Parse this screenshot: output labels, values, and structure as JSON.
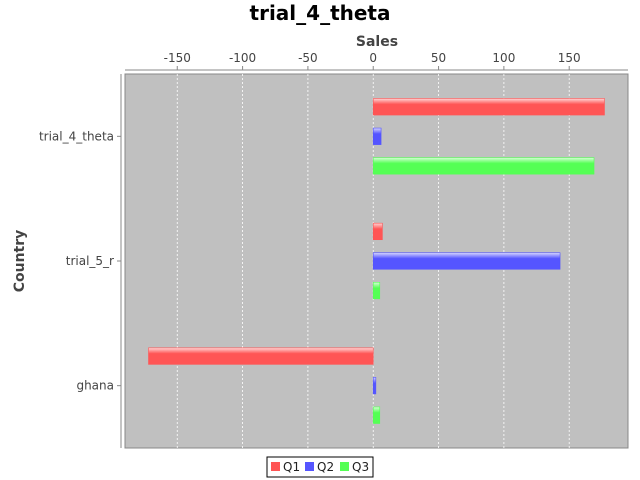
{
  "chart_data": {
    "type": "bar",
    "orientation": "horizontal",
    "title": "trial_4_theta",
    "xlabel": "Sales",
    "ylabel": "Country",
    "categories": [
      "trial_4_theta",
      "trial_5_r",
      "ghana"
    ],
    "series": [
      {
        "name": "Q1",
        "color": "#ff5555",
        "values": [
          177,
          7,
          -172
        ]
      },
      {
        "name": "Q2",
        "color": "#5555ff",
        "values": [
          6,
          143,
          2
        ]
      },
      {
        "name": "Q3",
        "color": "#55ff55",
        "values": [
          169,
          5,
          5
        ]
      }
    ],
    "xlim": [
      -190,
      195
    ],
    "xticks": [
      -150,
      -100,
      -50,
      0,
      50,
      100,
      150
    ],
    "x_axis_position": "top",
    "grid": true,
    "plot_background": "#c0c0c0",
    "legend_position": "bottom"
  }
}
